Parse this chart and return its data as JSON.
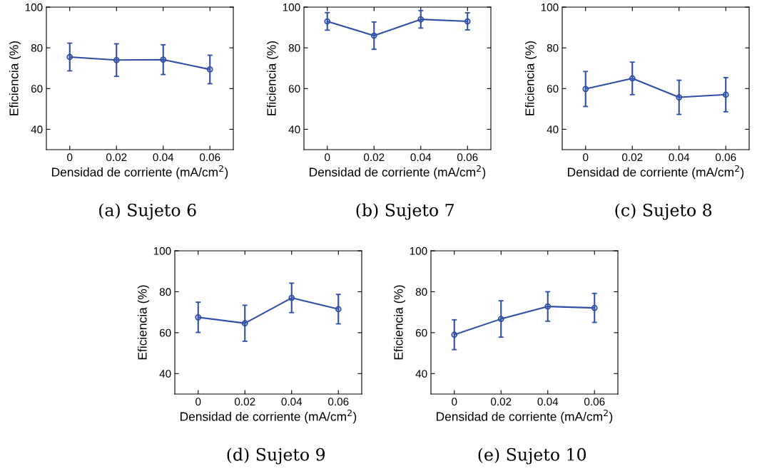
{
  "chart_data": [
    {
      "type": "line",
      "title": "(a) Sujeto 6",
      "xlabel": "Densidad de corriente (mA/cm$^{2}$)",
      "ylabel": "Eficiencia (%)",
      "x": [
        0,
        0.02,
        0.04,
        0.06
      ],
      "series": [
        {
          "color": "#2f4fa6",
          "values": [
            75.5,
            74,
            74.2,
            69.4
          ],
          "errors": [
            6.8,
            8,
            7.3,
            7
          ]
        }
      ],
      "xlim": [
        -0.01,
        0.07
      ],
      "xticks": [
        0,
        0.02,
        0.04,
        0.06
      ],
      "ylim": [
        30,
        100
      ],
      "yticks": [
        40,
        60,
        80,
        100
      ],
      "marker": "circle",
      "line_style": "solid",
      "grid": false,
      "legend": false
    },
    {
      "type": "line",
      "title": "(b) Sujeto 7",
      "xlabel": "Densidad de corriente (mA/cm$^{2}$)",
      "ylabel": "Eficiencia (%)",
      "x": [
        0,
        0.02,
        0.04,
        0.06
      ],
      "series": [
        {
          "color": "#2f4fa6",
          "values": [
            93,
            86,
            94,
            93
          ],
          "errors": [
            4.3,
            6.7,
            4.3,
            4.2
          ]
        }
      ],
      "xlim": [
        -0.01,
        0.07
      ],
      "xticks": [
        0,
        0.02,
        0.04,
        0.06
      ],
      "ylim": [
        30,
        100
      ],
      "yticks": [
        40,
        60,
        80,
        100
      ],
      "marker": "circle",
      "line_style": "solid",
      "grid": false,
      "legend": false
    },
    {
      "type": "line",
      "title": "(c) Sujeto 8",
      "xlabel": "Densidad de corriente (mA/cm$^{2}$)",
      "ylabel": "Eficiencia (%)",
      "x": [
        0,
        0.02,
        0.04,
        0.06
      ],
      "series": [
        {
          "color": "#2f4fa6",
          "values": [
            59.8,
            65,
            55.7,
            57
          ],
          "errors": [
            8.6,
            8,
            8.4,
            8.4
          ]
        }
      ],
      "xlim": [
        -0.01,
        0.07
      ],
      "xticks": [
        0,
        0.02,
        0.04,
        0.06
      ],
      "ylim": [
        30,
        100
      ],
      "yticks": [
        40,
        60,
        80,
        100
      ],
      "marker": "circle",
      "line_style": "solid",
      "grid": false,
      "legend": false
    },
    {
      "type": "line",
      "title": "(d) Sujeto 9",
      "xlabel": "Densidad de corriente (mA/cm$^{2}$)",
      "ylabel": "Eficiencia (%)",
      "x": [
        0,
        0.02,
        0.04,
        0.06
      ],
      "series": [
        {
          "color": "#2f4fa6",
          "values": [
            67.5,
            64.6,
            77,
            71.5
          ],
          "errors": [
            7.4,
            8.8,
            7.2,
            7.2
          ]
        }
      ],
      "xlim": [
        -0.01,
        0.07
      ],
      "xticks": [
        0,
        0.02,
        0.04,
        0.06
      ],
      "ylim": [
        30,
        100
      ],
      "yticks": [
        40,
        60,
        80,
        100
      ],
      "marker": "circle",
      "line_style": "solid",
      "grid": false,
      "legend": false
    },
    {
      "type": "line",
      "title": "(e) Sujeto 10",
      "xlabel": "Densidad de corriente (mA/cm$^{2}$)",
      "ylabel": "Eficiencia (%)",
      "x": [
        0,
        0.02,
        0.04,
        0.06
      ],
      "series": [
        {
          "color": "#2f4fa6",
          "values": [
            59,
            66.7,
            72.8,
            72.1
          ],
          "errors": [
            7.3,
            8.9,
            7.2,
            7.1
          ]
        }
      ],
      "xlim": [
        -0.01,
        0.07
      ],
      "xticks": [
        0,
        0.02,
        0.04,
        0.06
      ],
      "ylim": [
        30,
        100
      ],
      "yticks": [
        40,
        60,
        80,
        100
      ],
      "marker": "circle",
      "line_style": "solid",
      "grid": false,
      "legend": false
    }
  ]
}
